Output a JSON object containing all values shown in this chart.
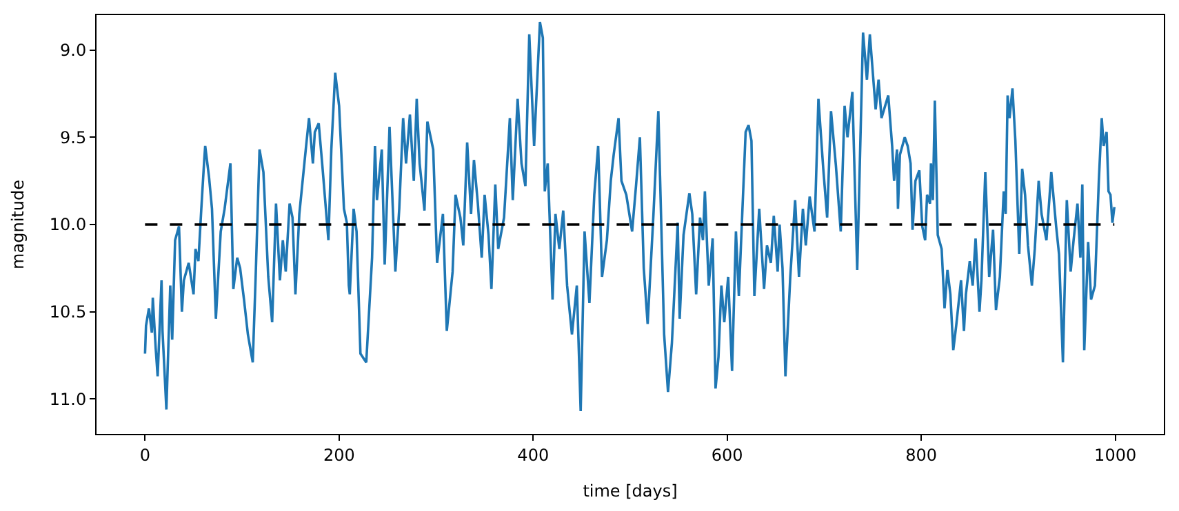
{
  "chart_data": {
    "type": "line",
    "xlabel": "time [days]",
    "ylabel": "magnitude",
    "xlim": [
      -50,
      1050
    ],
    "ylim": [
      11.2,
      8.8
    ],
    "xticks": [
      0,
      200,
      400,
      600,
      800,
      1000
    ],
    "yticks": [
      {
        "value": 9,
        "label": "9.0"
      },
      {
        "value": 9.5,
        "label": "9.5"
      },
      {
        "value": 10,
        "label": "10.0"
      },
      {
        "value": 10.5,
        "label": "10.5"
      },
      {
        "value": 11,
        "label": "11.0"
      }
    ],
    "marker": "none",
    "line_style": "solid",
    "ref_lines": [
      {
        "axis": "y",
        "value": 10,
        "label": null,
        "color": "#000000",
        "line_style": "dashed"
      }
    ],
    "series": [
      {
        "color": "#1f77b4",
        "x": [
          0,
          1,
          4,
          7,
          8,
          11,
          13,
          17,
          18,
          22,
          26,
          28,
          31,
          35,
          38,
          40,
          45,
          50,
          52,
          55,
          58,
          61,
          62,
          66,
          69,
          73,
          78,
          82,
          88,
          91,
          95,
          98,
          102,
          106,
          111,
          114,
          118,
          122,
          127,
          131,
          135,
          139,
          142,
          145,
          149,
          152,
          155,
          159,
          166,
          169,
          173,
          175,
          179,
          183,
          189,
          192,
          196,
          200,
          205,
          208,
          210,
          211,
          215,
          218,
          222,
          228,
          234,
          237,
          239,
          244,
          247,
          252,
          258,
          262,
          266,
          269,
          273,
          277,
          280,
          283,
          288,
          291,
          297,
          301,
          307,
          311,
          317,
          320,
          325,
          328,
          332,
          336,
          339,
          343,
          347,
          350,
          354,
          357,
          361,
          364,
          370,
          376,
          379,
          384,
          388,
          392,
          396,
          401,
          407,
          410,
          412,
          415,
          420,
          423,
          427,
          431,
          435,
          440,
          445,
          449,
          453,
          458,
          463,
          467,
          471,
          476,
          480,
          483,
          488,
          491,
          496,
          502,
          506,
          510,
          514,
          518,
          524,
          529,
          535,
          539,
          543,
          549,
          551,
          555,
          561,
          564,
          568,
          572,
          575,
          577,
          581,
          585,
          588,
          591,
          594,
          597,
          601,
          605,
          609,
          612,
          619,
          622,
          625,
          628,
          633,
          638,
          641,
          645,
          648,
          652,
          654,
          657,
          660,
          665,
          670,
          674,
          678,
          681,
          685,
          690,
          694,
          699,
          703,
          707,
          712,
          717,
          721,
          724,
          729,
          734,
          740,
          744,
          747,
          753,
          756,
          759,
          766,
          770,
          772,
          775,
          776,
          778,
          783,
          786,
          789,
          791,
          794,
          798,
          801,
          804,
          806,
          809,
          810,
          812,
          814,
          817,
          821,
          824,
          827,
          830,
          833,
          836,
          841,
          844,
          846,
          850,
          853,
          856,
          860,
          862,
          866,
          870,
          874,
          877,
          881,
          885,
          887,
          889,
          891,
          894,
          897,
          901,
          904,
          907,
          910,
          914,
          917,
          921,
          924,
          929,
          934,
          939,
          942,
          946,
          950,
          954,
          957,
          961,
          964,
          966,
          968,
          972,
          975,
          979,
          983,
          986,
          988,
          991,
          993,
          995,
          997,
          999
        ],
        "values": [
          10.74,
          10.58,
          10.48,
          10.62,
          10.42,
          10.71,
          10.87,
          10.32,
          10.61,
          11.06,
          10.35,
          10.66,
          10.09,
          10.01,
          10.5,
          10.32,
          10.22,
          10.4,
          10.14,
          10.21,
          9.91,
          9.63,
          9.55,
          9.73,
          9.91,
          10.54,
          10.04,
          9.91,
          9.65,
          10.37,
          10.19,
          10.25,
          10.43,
          10.63,
          10.79,
          10.3,
          9.57,
          9.7,
          10.3,
          10.56,
          9.88,
          10.32,
          10.09,
          10.27,
          9.88,
          9.96,
          10.4,
          9.94,
          9.55,
          9.39,
          9.65,
          9.47,
          9.42,
          9.68,
          10.09,
          9.57,
          9.13,
          9.32,
          9.91,
          9.99,
          10.35,
          10.4,
          9.91,
          10.04,
          10.74,
          10.79,
          10.19,
          9.55,
          9.86,
          9.57,
          10.23,
          9.44,
          10.27,
          9.91,
          9.39,
          9.65,
          9.37,
          9.75,
          9.28,
          9.65,
          9.92,
          9.41,
          9.57,
          10.22,
          9.94,
          10.61,
          10.27,
          9.83,
          9.96,
          10.12,
          9.53,
          9.94,
          9.63,
          9.88,
          10.19,
          9.83,
          10.06,
          10.37,
          9.77,
          10.14,
          9.96,
          9.39,
          9.86,
          9.28,
          9.65,
          9.78,
          8.91,
          9.55,
          8.84,
          8.93,
          9.81,
          9.65,
          10.43,
          9.94,
          10.14,
          9.92,
          10.35,
          10.63,
          10.35,
          11.07,
          10.04,
          10.45,
          9.83,
          9.55,
          10.3,
          10.09,
          9.75,
          9.6,
          9.39,
          9.75,
          9.83,
          10.04,
          9.78,
          9.5,
          10.25,
          10.57,
          9.94,
          9.35,
          10.63,
          10.96,
          10.68,
          9.99,
          10.54,
          10.06,
          9.82,
          9.94,
          10.4,
          9.96,
          10.09,
          9.81,
          10.35,
          10.08,
          10.94,
          10.76,
          10.35,
          10.56,
          10.3,
          10.84,
          10.04,
          10.41,
          9.47,
          9.43,
          9.52,
          10.41,
          9.91,
          10.37,
          10.12,
          10.22,
          9.95,
          10.27,
          10.0,
          10.25,
          10.87,
          10.3,
          9.86,
          10.3,
          9.91,
          10.12,
          9.84,
          10.04,
          9.28,
          9.68,
          9.96,
          9.35,
          9.66,
          10.04,
          9.32,
          9.5,
          9.24,
          10.26,
          8.9,
          9.17,
          8.91,
          9.34,
          9.17,
          9.39,
          9.26,
          9.55,
          9.75,
          9.57,
          9.91,
          9.6,
          9.5,
          9.55,
          9.65,
          10.03,
          9.75,
          9.69,
          10.01,
          10.09,
          9.83,
          9.88,
          9.65,
          9.86,
          9.29,
          10.06,
          10.14,
          10.48,
          10.26,
          10.4,
          10.72,
          10.58,
          10.32,
          10.61,
          10.4,
          10.21,
          10.35,
          10.08,
          10.5,
          10.32,
          9.7,
          10.3,
          10.03,
          10.49,
          10.3,
          9.81,
          9.94,
          9.26,
          9.39,
          9.22,
          9.52,
          10.17,
          9.68,
          9.83,
          10.12,
          10.35,
          10.14,
          9.75,
          9.94,
          10.09,
          9.7,
          10.01,
          10.17,
          10.79,
          9.86,
          10.27,
          10.09,
          9.88,
          10.19,
          9.77,
          10.72,
          10.1,
          10.43,
          10.35,
          9.75,
          9.39,
          9.55,
          9.47,
          9.81,
          9.83,
          9.99,
          9.9
        ]
      }
    ]
  }
}
